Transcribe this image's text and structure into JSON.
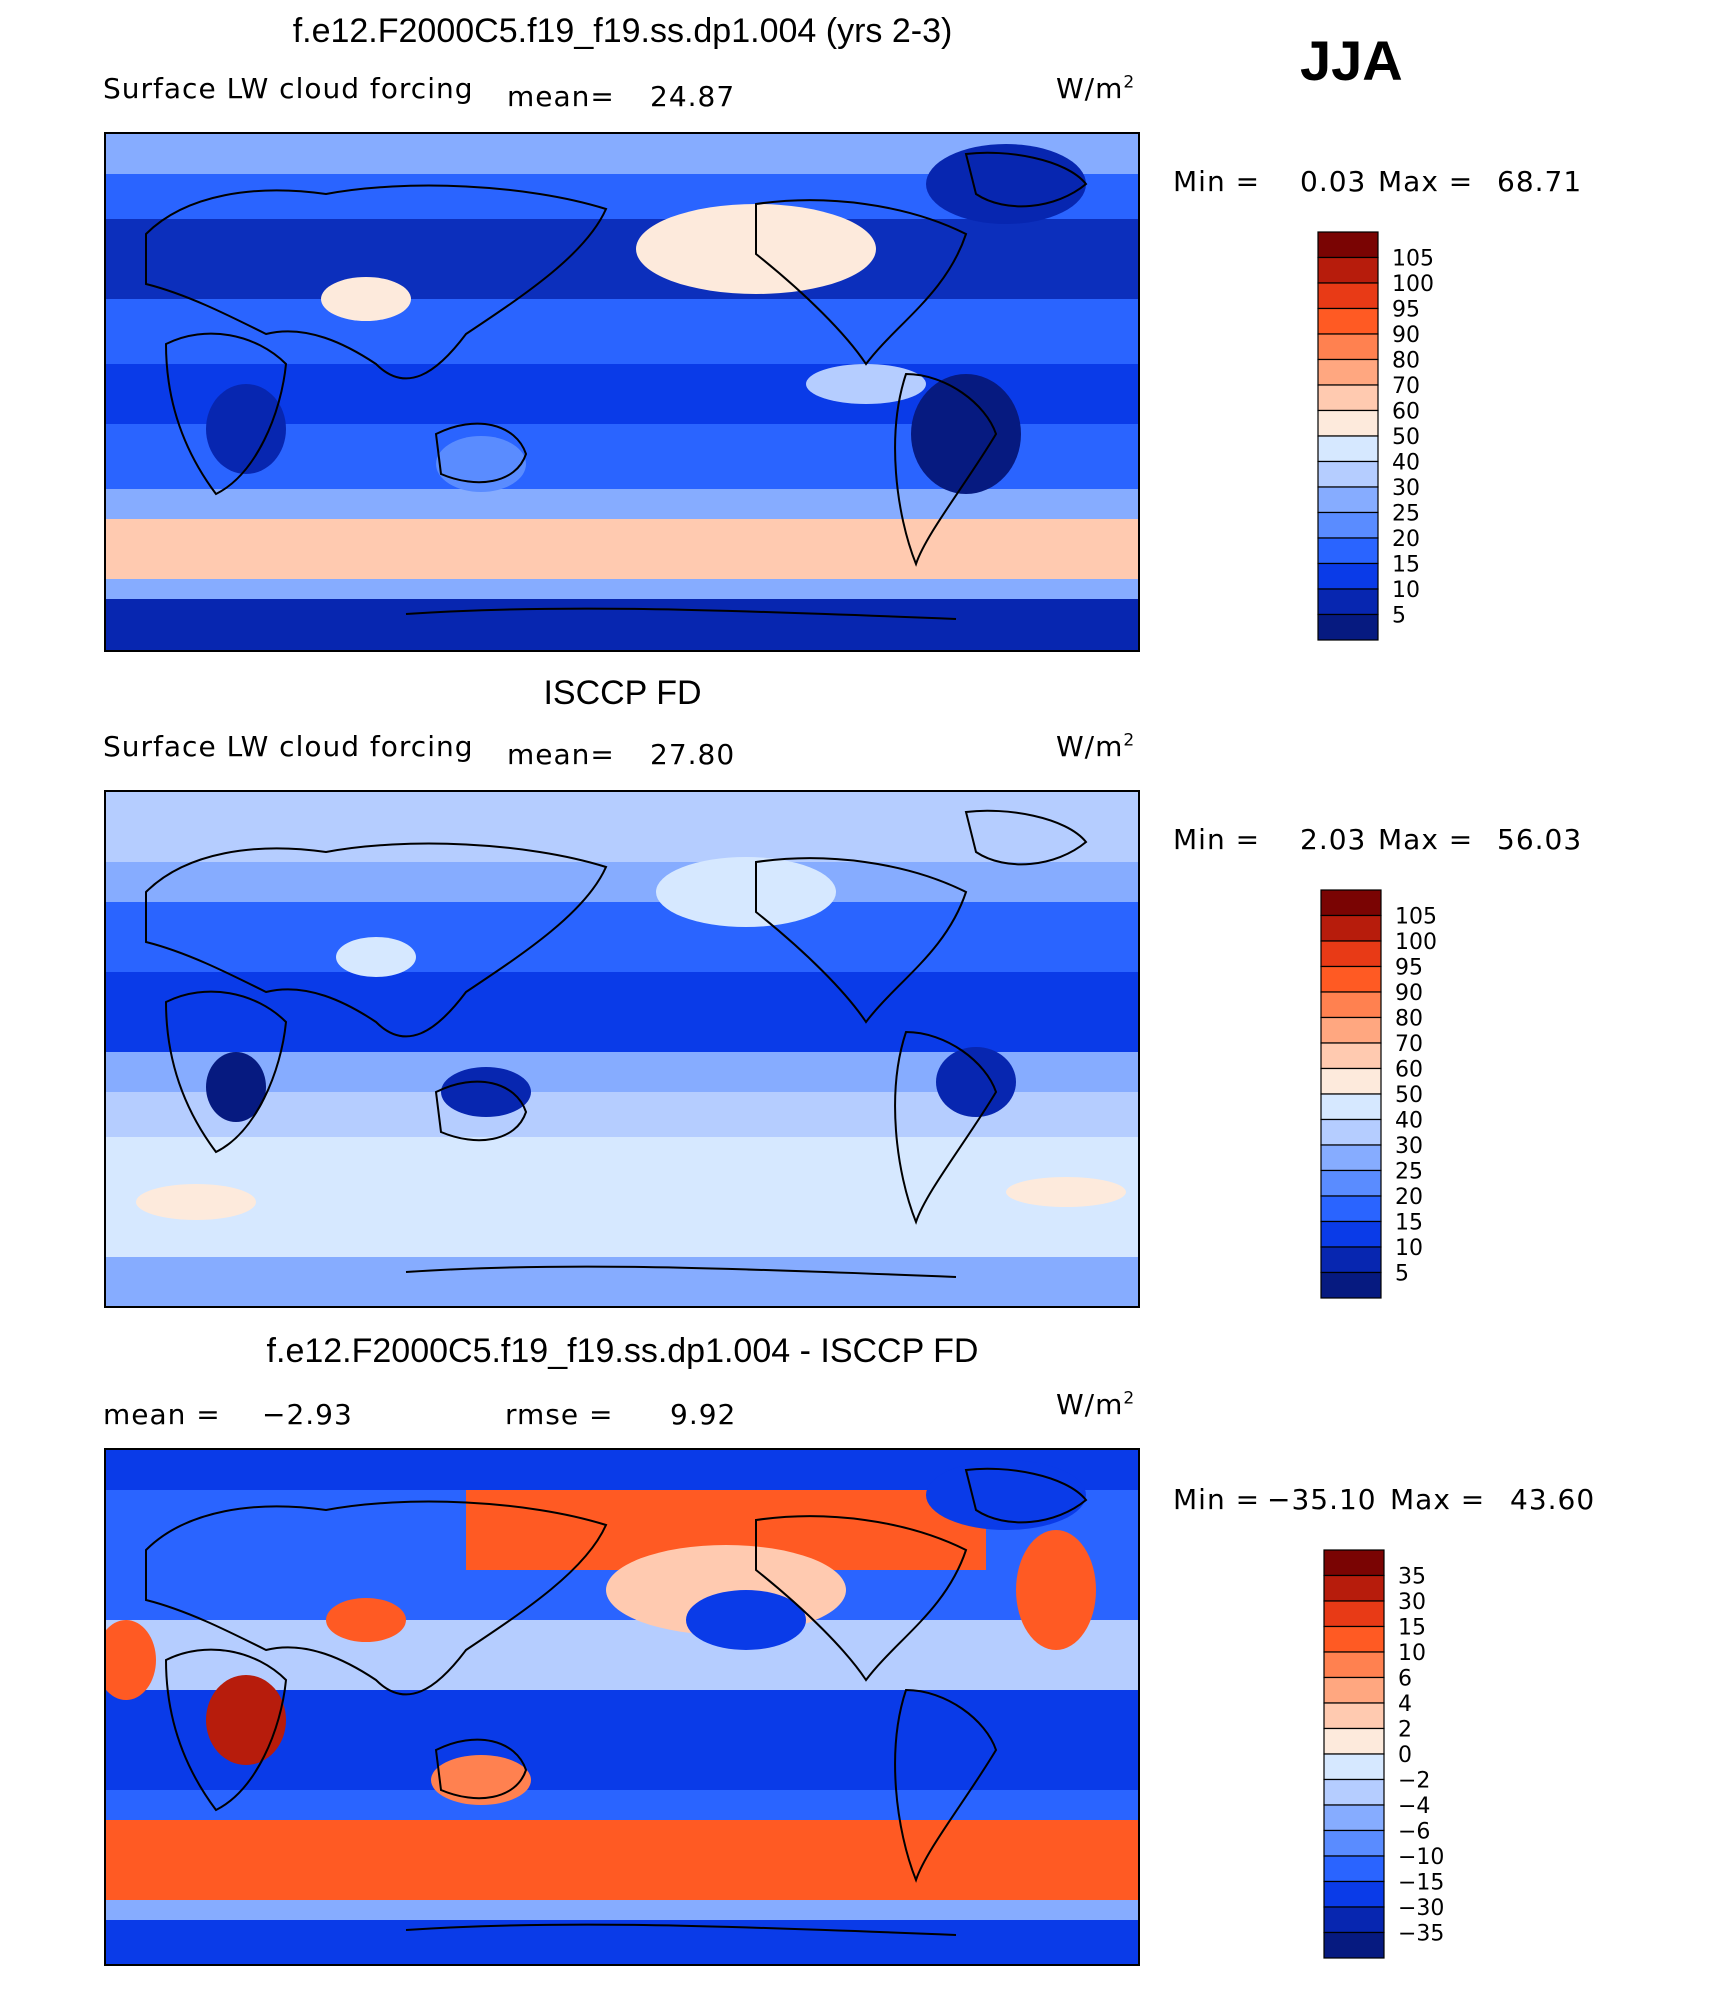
{
  "season": "JJA",
  "chart_data": [
    {
      "type": "heatmap",
      "title": "f.e12.F2000C5.f19_f19.ss.dp1.004 (yrs 2-3)",
      "subtitle_left": "Surface LW cloud forcing",
      "stat_label": "mean=",
      "stat_value": "24.87",
      "units_base": "W/m",
      "units_exp": "2",
      "min_label": "Min =",
      "min_value": "0.03",
      "max_label": "Max =",
      "max_value": "68.71",
      "levels": [
        "105",
        "100",
        "95",
        "90",
        "80",
        "70",
        "60",
        "50",
        "40",
        "30",
        "25",
        "20",
        "15",
        "10",
        "5"
      ],
      "colors": [
        "#7a0403",
        "#b71c0c",
        "#e83a16",
        "#ff5a23",
        "#ff8150",
        "#ffa780",
        "#ffcab0",
        "#fdeadc",
        "#d6e8ff",
        "#b5cdff",
        "#86acff",
        "#5a8cff",
        "#2a64ff",
        "#0a3be8",
        "#0726b0",
        "#061a80"
      ]
    },
    {
      "type": "heatmap",
      "title": "ISCCP FD",
      "subtitle_left": "Surface LW cloud forcing",
      "stat_label": "mean=",
      "stat_value": "27.80",
      "units_base": "W/m",
      "units_exp": "2",
      "min_label": "Min =",
      "min_value": "2.03",
      "max_label": "Max =",
      "max_value": "56.03",
      "levels": [
        "105",
        "100",
        "95",
        "90",
        "80",
        "70",
        "60",
        "50",
        "40",
        "30",
        "25",
        "20",
        "15",
        "10",
        "5"
      ],
      "colors": [
        "#7a0403",
        "#b71c0c",
        "#e83a16",
        "#ff5a23",
        "#ff8150",
        "#ffa780",
        "#ffcab0",
        "#fdeadc",
        "#d6e8ff",
        "#b5cdff",
        "#86acff",
        "#5a8cff",
        "#2a64ff",
        "#0a3be8",
        "#0726b0",
        "#061a80"
      ]
    },
    {
      "type": "heatmap",
      "title": "f.e12.F2000C5.f19_f19.ss.dp1.004 - ISCCP FD",
      "mean_label": "mean =",
      "mean_value": "−2.93",
      "rmse_label": "rmse =",
      "rmse_value": "9.92",
      "units_base": "W/m",
      "units_exp": "2",
      "min_label": "Min =",
      "min_value": "−35.10",
      "max_label": "Max =",
      "max_value": "43.60",
      "levels": [
        "35",
        "30",
        "15",
        "10",
        "6",
        "4",
        "2",
        "0",
        "−2",
        "−4",
        "−6",
        "−10",
        "−15",
        "−30",
        "−35"
      ],
      "colors": [
        "#7a0403",
        "#b71c0c",
        "#e83a16",
        "#ff5a23",
        "#ff8150",
        "#ffa780",
        "#ffcab0",
        "#fdeadc",
        "#d6e8ff",
        "#b5cdff",
        "#86acff",
        "#5a8cff",
        "#2a64ff",
        "#0a3be8",
        "#0726b0",
        "#061a80"
      ]
    }
  ]
}
